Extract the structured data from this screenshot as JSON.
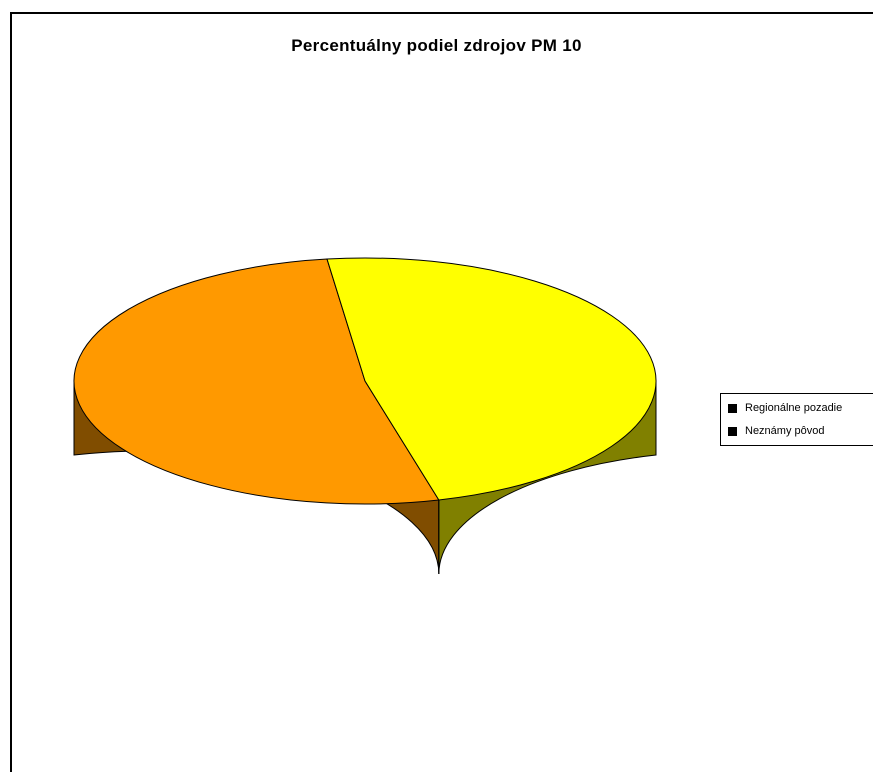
{
  "chart_data": {
    "type": "pie",
    "style": "3d",
    "title": "Percentuálny podiel zdrojov PM 10",
    "categories": [
      "Regionálne pozadie",
      "Neznámy pôvod"
    ],
    "values": [
      52,
      48
    ],
    "colors": {
      "Regionálne pozadie": "#FF9900",
      "Neznámy pôvod": "#FFFF00"
    },
    "side_colors": {
      "Regionálne pozadie": "#804D00",
      "Neznámy pôvod": "#808000"
    },
    "legend": {
      "placement": "right",
      "items": [
        {
          "label": "Regionálne pozadie",
          "swatch": "#000000"
        },
        {
          "label": "Neznámy pôvod",
          "swatch": "#000000"
        }
      ]
    }
  }
}
